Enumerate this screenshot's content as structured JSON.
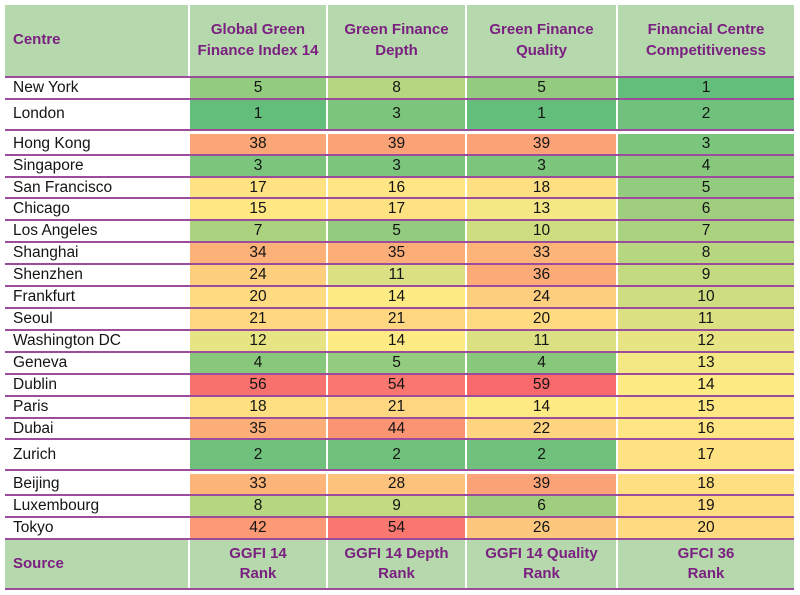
{
  "chart_data": {
    "type": "table",
    "columns": [
      "Centre",
      "Global Green\nFinance Index 14",
      "Green Finance\nDepth",
      "Green Finance\nQuality",
      "Financial Centre\nCompetitiveness"
    ],
    "rows": [
      {
        "centre": "New York",
        "values": [
          5,
          8,
          5,
          1
        ]
      },
      {
        "centre": "London",
        "values": [
          1,
          3,
          1,
          2
        ],
        "tall": true
      },
      {
        "centre": "Hong Kong",
        "values": [
          38,
          39,
          39,
          3
        ]
      },
      {
        "centre": "Singapore",
        "values": [
          3,
          3,
          3,
          4
        ]
      },
      {
        "centre": "San Francisco",
        "values": [
          17,
          16,
          18,
          5
        ]
      },
      {
        "centre": "Chicago",
        "values": [
          15,
          17,
          13,
          6
        ]
      },
      {
        "centre": "Los Angeles",
        "values": [
          7,
          5,
          10,
          7
        ]
      },
      {
        "centre": "Shanghai",
        "values": [
          34,
          35,
          33,
          8
        ]
      },
      {
        "centre": "Shenzhen",
        "values": [
          24,
          11,
          36,
          9
        ]
      },
      {
        "centre": "Frankfurt",
        "values": [
          20,
          14,
          24,
          10
        ]
      },
      {
        "centre": "Seoul",
        "values": [
          21,
          21,
          20,
          11
        ]
      },
      {
        "centre": "Washington DC",
        "values": [
          12,
          14,
          11,
          12
        ]
      },
      {
        "centre": "Geneva",
        "values": [
          4,
          5,
          4,
          13
        ]
      },
      {
        "centre": "Dublin",
        "values": [
          56,
          54,
          59,
          14
        ]
      },
      {
        "centre": "Paris",
        "values": [
          18,
          21,
          14,
          15
        ]
      },
      {
        "centre": "Dubai",
        "values": [
          35,
          44,
          22,
          16
        ]
      },
      {
        "centre": "Zurich",
        "values": [
          2,
          2,
          2,
          17
        ],
        "tall": true
      },
      {
        "centre": "Beijing",
        "values": [
          33,
          28,
          39,
          18
        ]
      },
      {
        "centre": "Luxembourg",
        "values": [
          8,
          9,
          6,
          19
        ]
      },
      {
        "centre": "Tokyo",
        "values": [
          42,
          54,
          26,
          20
        ]
      }
    ],
    "footer": [
      "Source",
      "GGFI 14\nRank",
      "GGFI 14 Depth\nRank",
      "GGFI 14 Quality\nRank",
      "GFCI 36\nRank"
    ],
    "color_scale": {
      "type": "3-color-scale",
      "min_value": 1,
      "min_color": "#63BE7B",
      "mid_value": 14,
      "mid_color": "#FFEB84",
      "max_value": 59,
      "max_color": "#F8696B"
    },
    "layout": {
      "grid": "off",
      "legend": "none"
    }
  },
  "colors": {
    "band_background": "#B5D8AC",
    "heading_text": "#7B2080",
    "row_separator": "#9B4D9B",
    "row_background": "#FFFFFF",
    "value_text": "#141414"
  }
}
